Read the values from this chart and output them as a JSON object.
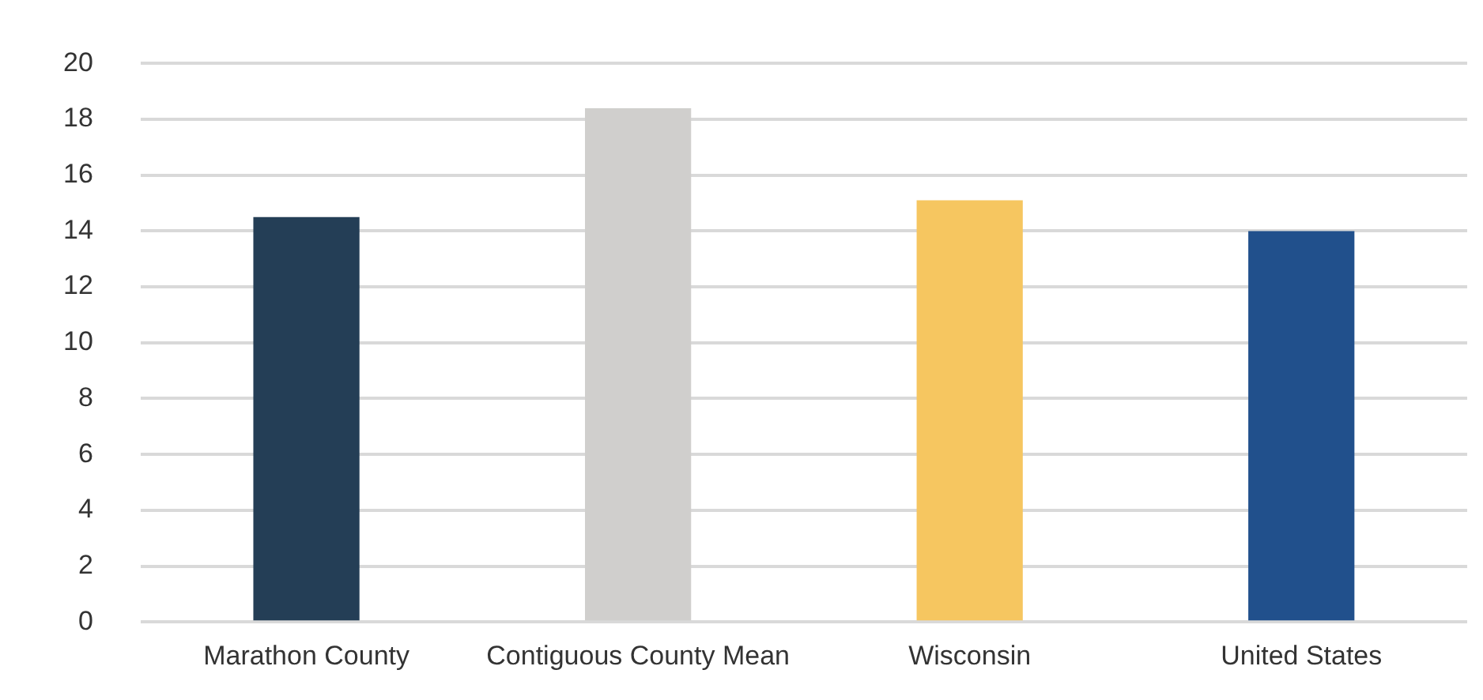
{
  "chart_data": {
    "type": "bar",
    "categories": [
      "Marathon County",
      "Contiguous County Mean",
      "Wisconsin",
      "United States"
    ],
    "values": [
      14.5,
      18.4,
      15.1,
      14.0
    ],
    "colors": [
      "#243e56",
      "#d0cfcd",
      "#f6c660",
      "#21508c"
    ],
    "ylim": [
      0,
      20
    ],
    "yticks": [
      0,
      2,
      4,
      6,
      8,
      10,
      12,
      14,
      16,
      18,
      20
    ],
    "grid": "y",
    "legend": false
  }
}
